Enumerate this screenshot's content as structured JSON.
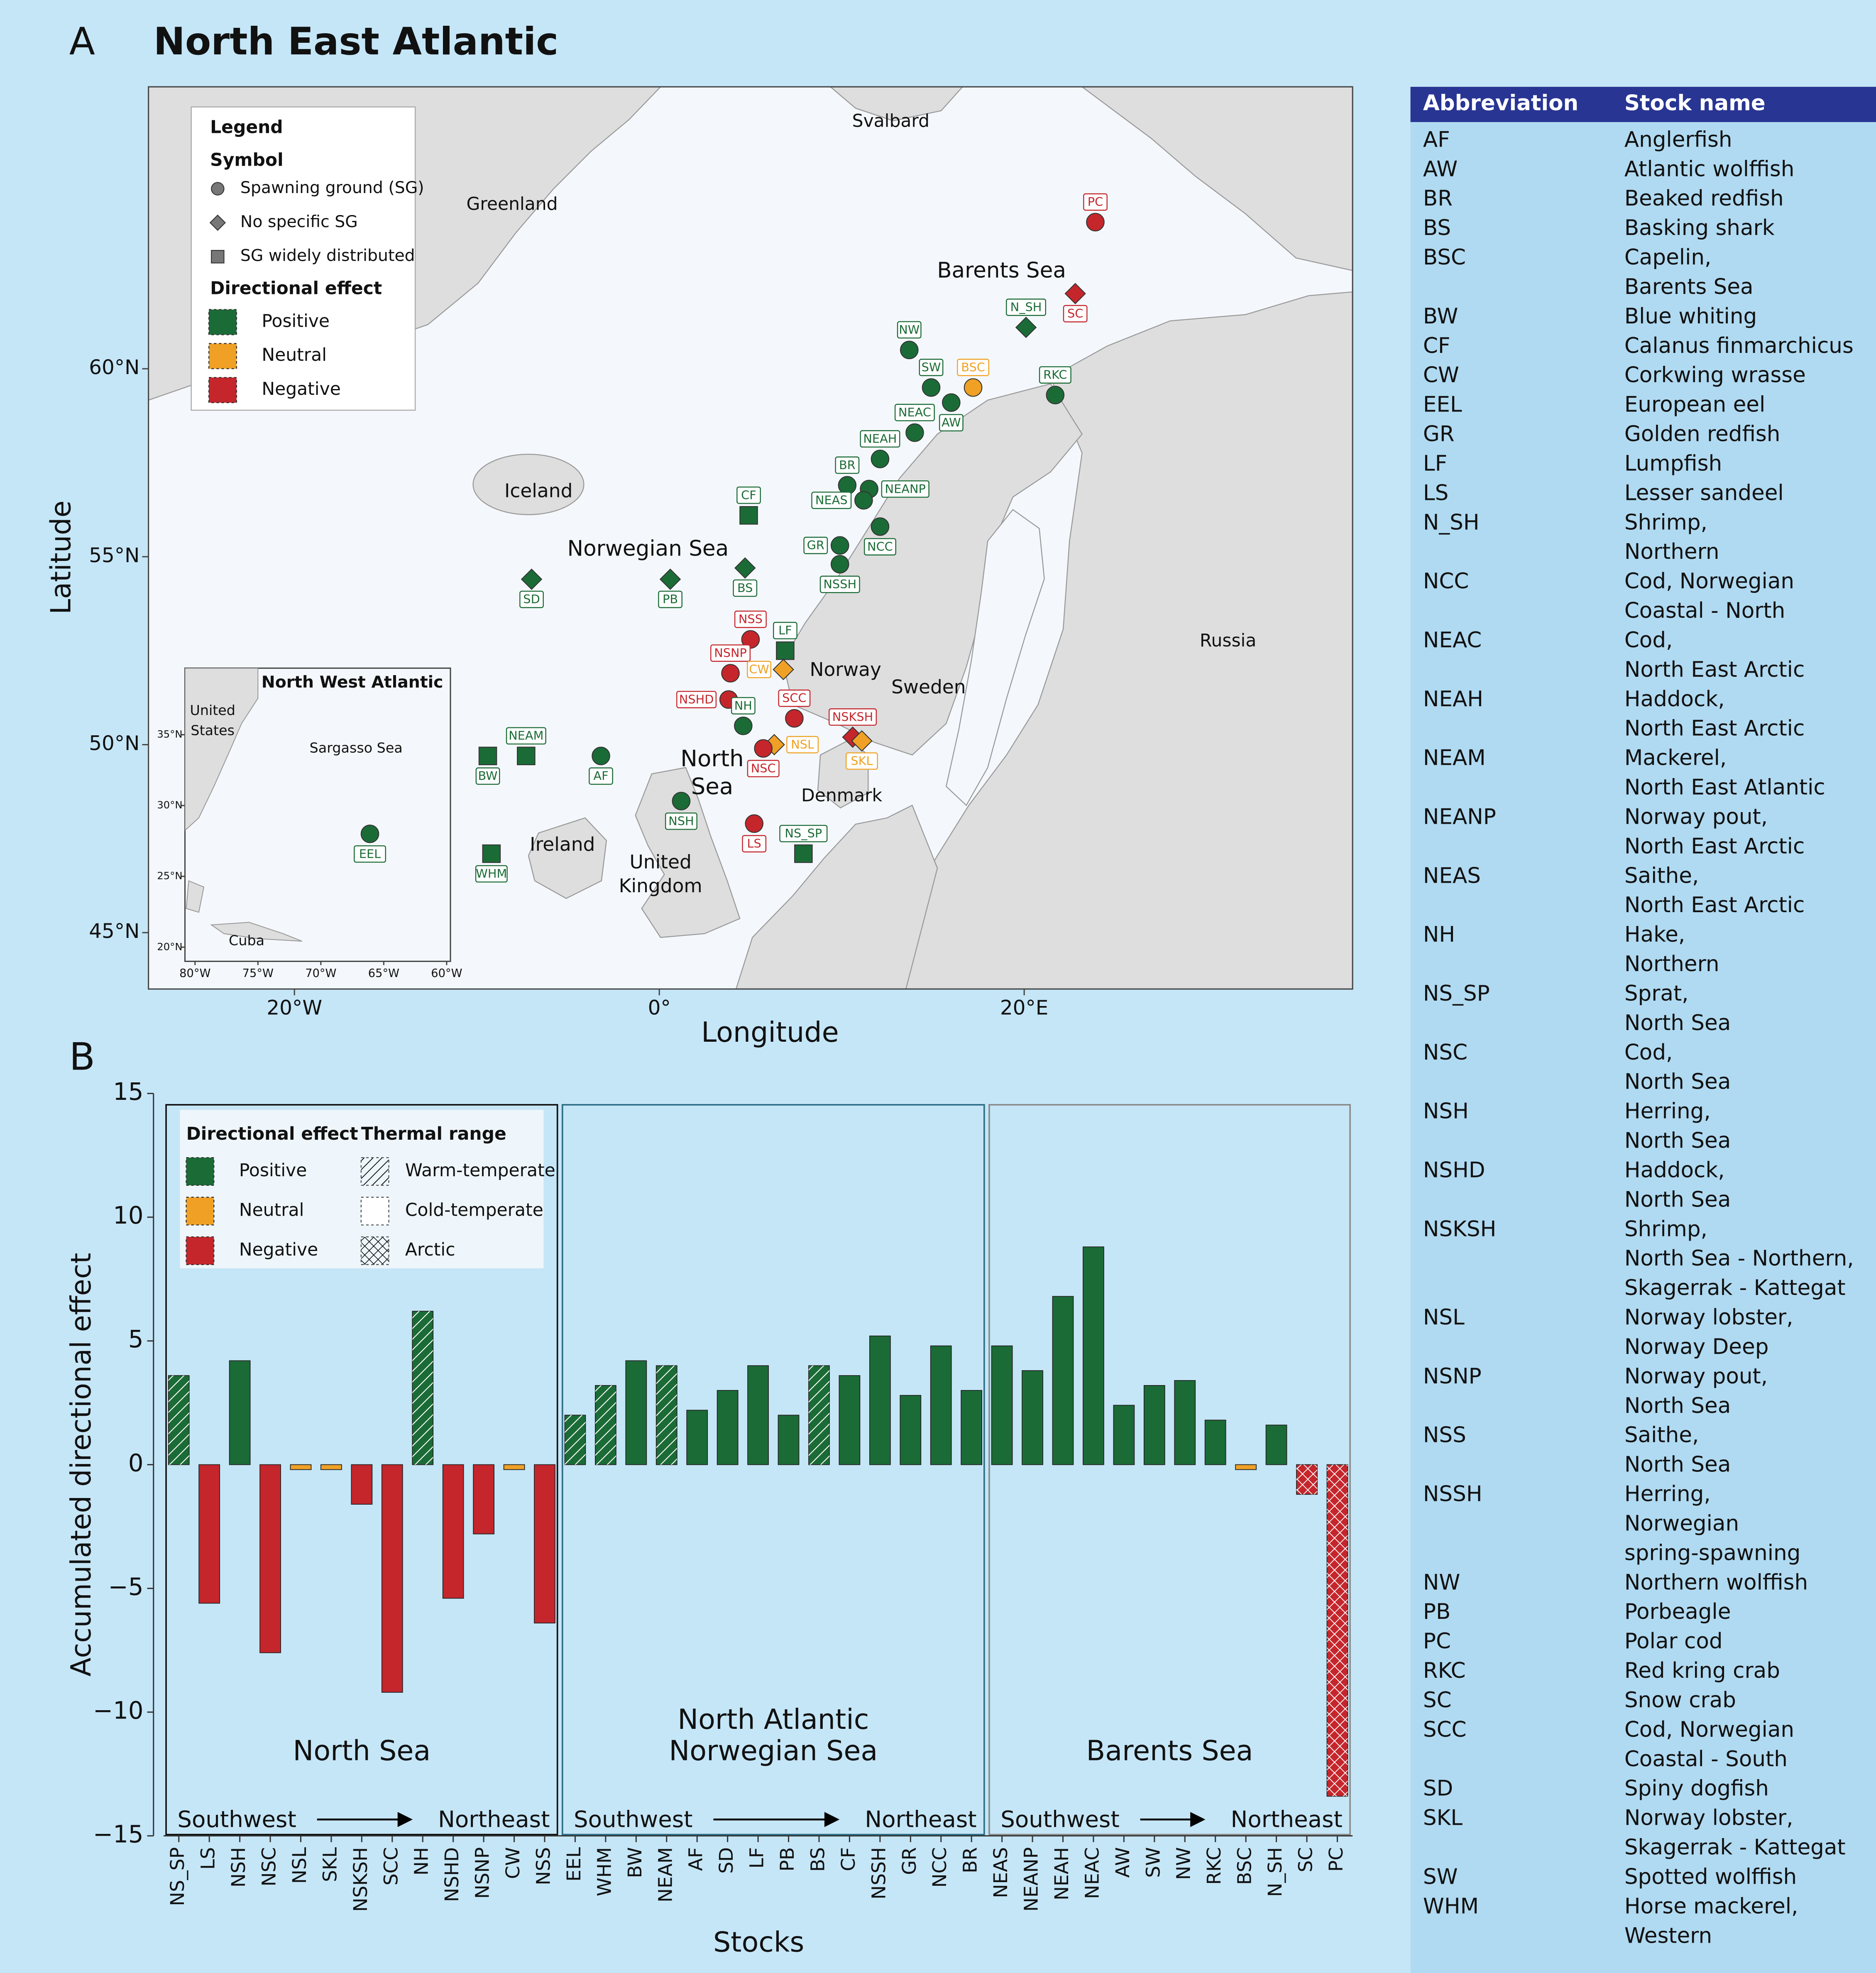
{
  "map": {
    "panel_label": "A",
    "title": "North East Atlantic",
    "xlabel": "Longitude",
    "ylabel": "Latitude",
    "xlim": [
      -28,
      38
    ],
    "ylim": [
      43.5,
      67.5
    ],
    "xticks": [
      {
        "value": -20,
        "label": "20°W"
      },
      {
        "value": 0,
        "label": "0°"
      },
      {
        "value": 20,
        "label": "20°E"
      }
    ],
    "yticks": [
      {
        "value": 45,
        "label": "45°N"
      },
      {
        "value": 50,
        "label": "50°N"
      },
      {
        "value": 55,
        "label": "55°N"
      },
      {
        "value": 60,
        "label": "60°N"
      }
    ],
    "places": [
      {
        "lines": [
          "Greenland"
        ]
      },
      {
        "lines": [
          "Svalbard"
        ]
      },
      {
        "lines": [
          "Barents Sea"
        ]
      },
      {
        "lines": [
          "Iceland"
        ]
      },
      {
        "lines": [
          "Norwegian Sea"
        ]
      },
      {
        "lines": [
          "Norway"
        ]
      },
      {
        "lines": [
          "Sweden"
        ]
      },
      {
        "lines": [
          "Russia"
        ]
      },
      {
        "lines": [
          "North",
          "Sea"
        ]
      },
      {
        "lines": [
          "Denmark"
        ]
      },
      {
        "lines": [
          "Ireland"
        ]
      },
      {
        "lines": [
          "United",
          "Kingdom"
        ]
      }
    ],
    "legend": {
      "title": "Legend",
      "symbol_title": "Symbol",
      "symbols": [
        {
          "name": "Spawning ground (SG)",
          "shape": "circle"
        },
        {
          "name": "No specific SG",
          "shape": "diamond"
        },
        {
          "name": "SG widely distributed",
          "shape": "square"
        }
      ],
      "effect_title": "Directional effect",
      "effects": [
        {
          "name": "Positive",
          "color": "#1b6b36"
        },
        {
          "name": "Neutral",
          "color": "#f0a125"
        },
        {
          "name": "Negative",
          "color": "#c4262c"
        }
      ]
    },
    "stocks": [
      {
        "label": "PC",
        "lon": 23.9,
        "lat": 63.9,
        "shape": "circle",
        "color": "#c4262c",
        "label_side": "above"
      },
      {
        "label": "SC",
        "lon": 22.8,
        "lat": 62.0,
        "shape": "diamond",
        "color": "#c4262c",
        "label_side": "below"
      },
      {
        "label": "N_SH",
        "lon": 20.1,
        "lat": 61.1,
        "shape": "diamond",
        "color": "#1b6b36",
        "label_side": "above"
      },
      {
        "label": "NW",
        "lon": 13.7,
        "lat": 60.5,
        "shape": "circle",
        "color": "#1b6b36",
        "label_side": "above"
      },
      {
        "label": "BSC",
        "lon": 17.2,
        "lat": 59.5,
        "shape": "circle",
        "color": "#f0a125",
        "label_side": "above"
      },
      {
        "label": "RKC",
        "lon": 21.7,
        "lat": 59.3,
        "shape": "circle",
        "color": "#1b6b36",
        "label_side": "above"
      },
      {
        "label": "SW",
        "lon": 14.9,
        "lat": 59.5,
        "shape": "circle",
        "color": "#1b6b36",
        "label_side": "above"
      },
      {
        "label": "AW",
        "lon": 16.0,
        "lat": 59.1,
        "shape": "circle",
        "color": "#1b6b36",
        "label_side": "below"
      },
      {
        "label": "NEAC",
        "lon": 14.0,
        "lat": 58.3,
        "shape": "circle",
        "color": "#1b6b36",
        "label_side": "above"
      },
      {
        "label": "NEAH",
        "lon": 12.1,
        "lat": 57.6,
        "shape": "circle",
        "color": "#1b6b36",
        "label_side": "above"
      },
      {
        "label": "BR",
        "lon": 10.3,
        "lat": 56.9,
        "shape": "circle",
        "color": "#1b6b36",
        "label_side": "above"
      },
      {
        "label": "NEANP",
        "lon": 11.5,
        "lat": 56.8,
        "shape": "circle",
        "color": "#1b6b36",
        "label_side": "right"
      },
      {
        "label": "NEAS",
        "lon": 11.2,
        "lat": 56.5,
        "shape": "circle",
        "color": "#1b6b36",
        "label_side": "left"
      },
      {
        "label": "CF",
        "lon": 4.9,
        "lat": 56.1,
        "shape": "square",
        "color": "#1b6b36",
        "label_side": "above"
      },
      {
        "label": "NCC",
        "lon": 12.1,
        "lat": 55.8,
        "shape": "circle",
        "color": "#1b6b36",
        "label_side": "below"
      },
      {
        "label": "GR",
        "lon": 9.9,
        "lat": 55.3,
        "shape": "circle",
        "color": "#1b6b36",
        "label_side": "left"
      },
      {
        "label": "NSSH",
        "lon": 9.9,
        "lat": 54.8,
        "shape": "circle",
        "color": "#1b6b36",
        "label_side": "below"
      },
      {
        "label": "BS",
        "lon": 4.7,
        "lat": 54.7,
        "shape": "diamond",
        "color": "#1b6b36",
        "label_side": "below"
      },
      {
        "label": "SD",
        "lon": -7.0,
        "lat": 54.4,
        "shape": "diamond",
        "color": "#1b6b36",
        "label_side": "below"
      },
      {
        "label": "PB",
        "lon": 0.6,
        "lat": 54.4,
        "shape": "diamond",
        "color": "#1b6b36",
        "label_side": "below"
      },
      {
        "label": "NSS",
        "lon": 5.0,
        "lat": 52.8,
        "shape": "circle",
        "color": "#c4262c",
        "label_side": "above"
      },
      {
        "label": "LF",
        "lon": 6.9,
        "lat": 52.5,
        "shape": "square",
        "color": "#1b6b36",
        "label_side": "above"
      },
      {
        "label": "NSNP",
        "lon": 3.9,
        "lat": 51.9,
        "shape": "circle",
        "color": "#c4262c",
        "label_side": "above"
      },
      {
        "label": "CW",
        "lon": 6.8,
        "lat": 52.0,
        "shape": "diamond",
        "color": "#f0a125",
        "label_side": "left"
      },
      {
        "label": "NSHD",
        "lon": 3.8,
        "lat": 51.2,
        "shape": "circle",
        "color": "#c4262c",
        "label_side": "left"
      },
      {
        "label": "NH",
        "lon": 4.6,
        "lat": 50.5,
        "shape": "circle",
        "color": "#1b6b36",
        "label_side": "above"
      },
      {
        "label": "SCC",
        "lon": 7.4,
        "lat": 50.7,
        "shape": "circle",
        "color": "#c4262c",
        "label_side": "above"
      },
      {
        "label": "NSKSH",
        "lon": 10.6,
        "lat": 50.2,
        "shape": "diamond",
        "color": "#c4262c",
        "label_side": "above"
      },
      {
        "label": "NSL",
        "lon": 6.3,
        "lat": 50.0,
        "shape": "diamond",
        "color": "#f0a125",
        "label_side": "right"
      },
      {
        "label": "SKL",
        "lon": 11.1,
        "lat": 50.1,
        "shape": "diamond",
        "color": "#f0a125",
        "label_side": "below"
      },
      {
        "label": "NSC",
        "lon": 5.7,
        "lat": 49.9,
        "shape": "circle",
        "color": "#c4262c",
        "label_side": "below"
      },
      {
        "label": "BW",
        "lon": -9.4,
        "lat": 49.7,
        "shape": "square",
        "color": "#1b6b36",
        "label_side": "below"
      },
      {
        "label": "NEAM",
        "lon": -7.3,
        "lat": 49.7,
        "shape": "square",
        "color": "#1b6b36",
        "label_side": "above"
      },
      {
        "label": "AF",
        "lon": -3.2,
        "lat": 49.7,
        "shape": "circle",
        "color": "#1b6b36",
        "label_side": "below"
      },
      {
        "label": "NSH",
        "lon": 1.2,
        "lat": 48.5,
        "shape": "circle",
        "color": "#1b6b36",
        "label_side": "below"
      },
      {
        "label": "LS",
        "lon": 5.2,
        "lat": 47.9,
        "shape": "circle",
        "color": "#c4262c",
        "label_side": "below"
      },
      {
        "label": "NS_SP",
        "lon": 7.9,
        "lat": 47.1,
        "shape": "square",
        "color": "#1b6b36",
        "label_side": "above"
      },
      {
        "label": "WHM",
        "lon": -9.2,
        "lat": 47.1,
        "shape": "square",
        "color": "#1b6b36",
        "label_side": "below"
      }
    ],
    "inset": {
      "title": "North West Atlantic",
      "xlim": [
        -80.8,
        -59.7
      ],
      "ylim": [
        19,
        39.7
      ],
      "xticks": [
        {
          "value": -80,
          "label": "80°W"
        },
        {
          "value": -75,
          "label": "75°W"
        },
        {
          "value": -70,
          "label": "70°W"
        },
        {
          "value": -65,
          "label": "65°W"
        },
        {
          "value": -60,
          "label": "60°W"
        }
      ],
      "yticks": [
        {
          "value": 20,
          "label": "20°N"
        },
        {
          "value": 25,
          "label": "25°N"
        },
        {
          "value": 30,
          "label": "30°N"
        },
        {
          "value": 35,
          "label": "35°N"
        }
      ],
      "places": [
        {
          "lines": [
            "United",
            "States"
          ]
        },
        {
          "lines": [
            "Sargasso Sea"
          ]
        },
        {
          "lines": [
            "Cuba"
          ]
        }
      ],
      "stocks": [
        {
          "label": "EEL",
          "lon": -66.1,
          "lat": 28.0,
          "shape": "circle",
          "color": "#1b6b36",
          "label_side": "below"
        }
      ]
    }
  },
  "chart_data": {
    "type": "bar",
    "panel_label": "B",
    "ylabel": "Accumulated directional effect",
    "xlabel": "Stocks",
    "categories": [
      "NS_SP",
      "LS",
      "NSH",
      "NSC",
      "NSL",
      "SKL",
      "NSKSH",
      "SCC",
      "NH",
      "NSHD",
      "NSNP",
      "CW",
      "NSS",
      "EEL",
      "WHM",
      "BW",
      "NEAM",
      "AF",
      "SD",
      "LF",
      "PB",
      "BS",
      "CF",
      "NSSH",
      "GR",
      "NCC",
      "BR",
      "NEAS",
      "NEANP",
      "NEAH",
      "NEAC",
      "AW",
      "SW",
      "NW",
      "RKC",
      "BSC",
      "N_SH",
      "SC",
      "PC"
    ],
    "values": [
      3.6,
      -5.6,
      4.2,
      -7.6,
      -0.2,
      -0.2,
      -1.6,
      -9.2,
      6.2,
      -5.4,
      -2.8,
      -0.2,
      -6.4,
      2.0,
      3.2,
      4.2,
      4.0,
      2.2,
      3.0,
      4.0,
      2.0,
      4.0,
      3.6,
      5.2,
      2.8,
      4.8,
      3.0,
      4.8,
      3.8,
      6.8,
      8.8,
      2.4,
      3.2,
      3.4,
      1.8,
      -0.2,
      1.6,
      -1.2,
      -13.4
    ],
    "colors": [
      "#1b6b36",
      "#c4262c",
      "#1b6b36",
      "#c4262c",
      "#f0a125",
      "#f0a125",
      "#c4262c",
      "#c4262c",
      "#1b6b36",
      "#c4262c",
      "#c4262c",
      "#f0a125",
      "#c4262c",
      "#1b6b36",
      "#1b6b36",
      "#1b6b36",
      "#1b6b36",
      "#1b6b36",
      "#1b6b36",
      "#1b6b36",
      "#1b6b36",
      "#1b6b36",
      "#1b6b36",
      "#1b6b36",
      "#1b6b36",
      "#1b6b36",
      "#1b6b36",
      "#1b6b36",
      "#1b6b36",
      "#1b6b36",
      "#1b6b36",
      "#1b6b36",
      "#1b6b36",
      "#1b6b36",
      "#1b6b36",
      "#f0a125",
      "#1b6b36",
      "#c4262c",
      "#c4262c"
    ],
    "hatch": [
      "warm",
      "cold",
      "cold",
      "cold",
      "cold",
      "cold",
      "cold",
      "cold",
      "warm",
      "cold",
      "cold",
      "cold",
      "cold",
      "warm",
      "warm",
      "cold",
      "warm",
      "cold",
      "cold",
      "cold",
      "cold",
      "warm",
      "cold",
      "cold",
      "cold",
      "cold",
      "cold",
      "cold",
      "cold",
      "cold",
      "cold",
      "cold",
      "cold",
      "cold",
      "cold",
      "cold",
      "cold",
      "arctic",
      "arctic"
    ],
    "ylim": [
      -15,
      15
    ],
    "yticks": [
      {
        "value": -15,
        "label": "−15"
      },
      {
        "value": -10,
        "label": "−10"
      },
      {
        "value": -5,
        "label": "−5"
      },
      0,
      5,
      10,
      15
    ],
    "legend": {
      "effect_title": "Directional effect",
      "effects": [
        {
          "name": "Positive",
          "color": "#1b6b36"
        },
        {
          "name": "Neutral",
          "color": "#f0a125"
        },
        {
          "name": "Negative",
          "color": "#c4262c"
        }
      ],
      "thermal_title": "Thermal range",
      "thermal": [
        {
          "name": "Warm-temperate",
          "hatch": "warm"
        },
        {
          "name": "Cold-temperate",
          "hatch": "cold"
        },
        {
          "name": "Arctic",
          "hatch": "arctic"
        }
      ]
    },
    "regions": [
      {
        "name": [
          "North Sea"
        ],
        "count": 13,
        "from": "Southwest",
        "to": "Northeast",
        "frame": "#111111"
      },
      {
        "name": [
          "North Atlantic",
          "Norwegian Sea"
        ],
        "count": 14,
        "from": "Southwest",
        "to": "Northeast",
        "frame": "#2d6f86"
      },
      {
        "name": [
          "Barents Sea"
        ],
        "count": 12,
        "from": "Southwest",
        "to": "Northeast",
        "frame": "#8a8a8a"
      }
    ]
  },
  "table": {
    "header": [
      "Abbreviation",
      "Stock name"
    ],
    "rows": [
      {
        "abbreviation": "AF",
        "name": [
          "Anglerfish"
        ]
      },
      {
        "abbreviation": "AW",
        "name": [
          "Atlantic wolffish"
        ]
      },
      {
        "abbreviation": "BR",
        "name": [
          "Beaked redfish"
        ]
      },
      {
        "abbreviation": "BS",
        "name": [
          "Basking shark"
        ]
      },
      {
        "abbreviation": "BSC",
        "name": [
          "Capelin,",
          "Barents Sea"
        ]
      },
      {
        "abbreviation": "BW",
        "name": [
          "Blue whiting"
        ]
      },
      {
        "abbreviation": "CF",
        "name": [
          "Calanus finmarchicus"
        ]
      },
      {
        "abbreviation": "CW",
        "name": [
          "Corkwing wrasse"
        ]
      },
      {
        "abbreviation": "EEL",
        "name": [
          "European eel"
        ]
      },
      {
        "abbreviation": "GR",
        "name": [
          "Golden redfish"
        ]
      },
      {
        "abbreviation": "LF",
        "name": [
          "Lumpfish"
        ]
      },
      {
        "abbreviation": "LS",
        "name": [
          "Lesser sandeel"
        ]
      },
      {
        "abbreviation": "N_SH",
        "name": [
          "Shrimp,",
          "Northern"
        ]
      },
      {
        "abbreviation": "NCC",
        "name": [
          "Cod, Norwegian",
          "Coastal - North"
        ]
      },
      {
        "abbreviation": "NEAC",
        "name": [
          "Cod,",
          "North East Arctic"
        ]
      },
      {
        "abbreviation": "NEAH",
        "name": [
          "Haddock,",
          "North East Arctic"
        ]
      },
      {
        "abbreviation": "NEAM",
        "name": [
          "Mackerel,",
          "North East Atlantic"
        ]
      },
      {
        "abbreviation": "NEANP",
        "name": [
          "Norway pout,",
          "North East Arctic"
        ]
      },
      {
        "abbreviation": "NEAS",
        "name": [
          "Saithe,",
          "North East Arctic"
        ]
      },
      {
        "abbreviation": "NH",
        "name": [
          "Hake,",
          "Northern"
        ]
      },
      {
        "abbreviation": "NS_SP",
        "name": [
          "Sprat,",
          "North Sea"
        ]
      },
      {
        "abbreviation": "NSC",
        "name": [
          "Cod,",
          "North Sea"
        ]
      },
      {
        "abbreviation": "NSH",
        "name": [
          "Herring,",
          "North Sea"
        ]
      },
      {
        "abbreviation": "NSHD",
        "name": [
          "Haddock,",
          "North Sea"
        ]
      },
      {
        "abbreviation": "NSKSH",
        "name": [
          "Shrimp,",
          "North Sea - Northern,",
          "Skagerrak - Kattegat"
        ]
      },
      {
        "abbreviation": "NSL",
        "name": [
          "Norway lobster,",
          "Norway Deep"
        ]
      },
      {
        "abbreviation": "NSNP",
        "name": [
          "Norway pout,",
          "North Sea"
        ]
      },
      {
        "abbreviation": "NSS",
        "name": [
          "Saithe,",
          "North Sea"
        ]
      },
      {
        "abbreviation": "NSSH",
        "name": [
          "Herring,",
          "Norwegian",
          "spring-spawning"
        ]
      },
      {
        "abbreviation": "NW",
        "name": [
          "Northern wolffish"
        ]
      },
      {
        "abbreviation": "PB",
        "name": [
          "Porbeagle"
        ]
      },
      {
        "abbreviation": "PC",
        "name": [
          "Polar cod"
        ]
      },
      {
        "abbreviation": "RKC",
        "name": [
          "Red kring crab"
        ]
      },
      {
        "abbreviation": "SC",
        "name": [
          "Snow crab"
        ]
      },
      {
        "abbreviation": "SCC",
        "name": [
          "Cod, Norwegian",
          "Coastal - South"
        ]
      },
      {
        "abbreviation": "SD",
        "name": [
          "Spiny dogfish"
        ]
      },
      {
        "abbreviation": "SKL",
        "name": [
          "Norway lobster,",
          "Skagerrak - Kattegat"
        ]
      },
      {
        "abbreviation": "SW",
        "name": [
          "Spotted wolffish"
        ]
      },
      {
        "abbreviation": "WHM",
        "name": [
          "Horse mackerel,",
          "Western"
        ]
      }
    ]
  }
}
